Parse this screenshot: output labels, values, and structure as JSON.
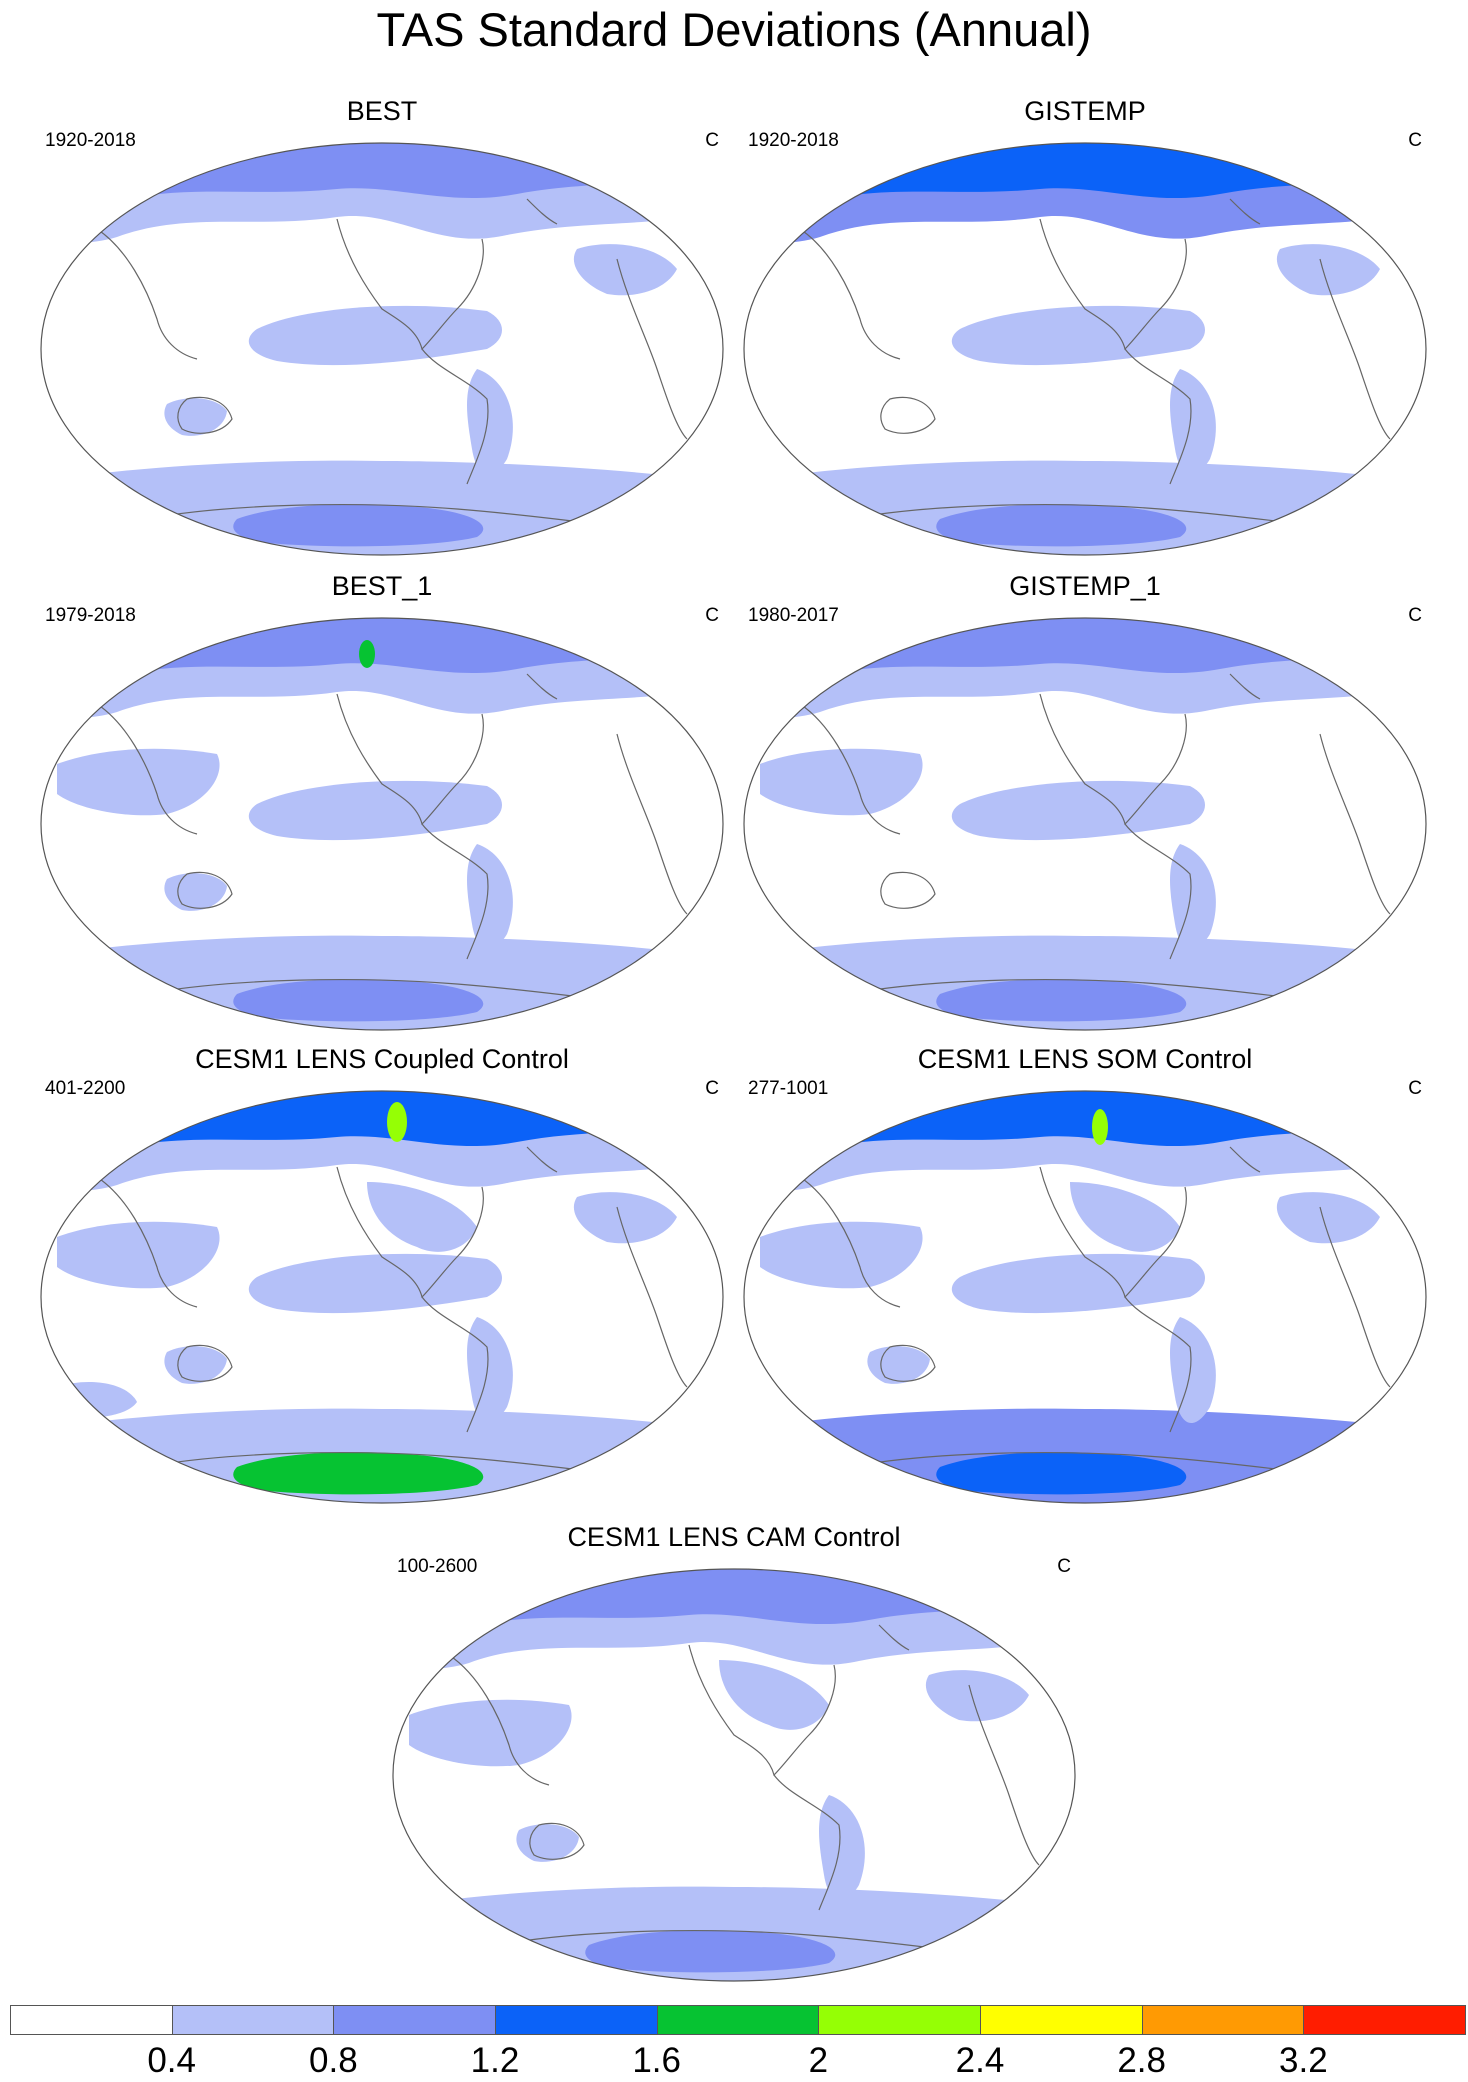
{
  "title": "TAS Standard Deviations (Annual)",
  "units": "C",
  "panels": [
    {
      "name": "BEST",
      "period": "1920-2018",
      "style": "obs-a"
    },
    {
      "name": "GISTEMP",
      "period": "1920-2018",
      "style": "obs-b"
    },
    {
      "name": "BEST_1",
      "period": "1979-2018",
      "style": "obs-c"
    },
    {
      "name": "GISTEMP_1",
      "period": "1980-2017",
      "style": "obs-d"
    },
    {
      "name": "CESM1 LENS Coupled Control",
      "period": "401-2200",
      "style": "model-a"
    },
    {
      "name": "CESM1 LENS SOM Control",
      "period": "277-1001",
      "style": "model-b"
    },
    {
      "name": "CESM1 LENS CAM Control",
      "period": "100-2600",
      "style": "model-c"
    }
  ],
  "colorbar": {
    "colors": [
      "#ffffff",
      "#b4c0f8",
      "#7e8ff3",
      "#0b62f8",
      "#06c332",
      "#95ff05",
      "#ffff00",
      "#ff9a03",
      "#ff1d00"
    ],
    "labels": [
      "0.4",
      "0.8",
      "1.2",
      "1.6",
      "2",
      "2.4",
      "2.8",
      "3.2"
    ]
  }
}
